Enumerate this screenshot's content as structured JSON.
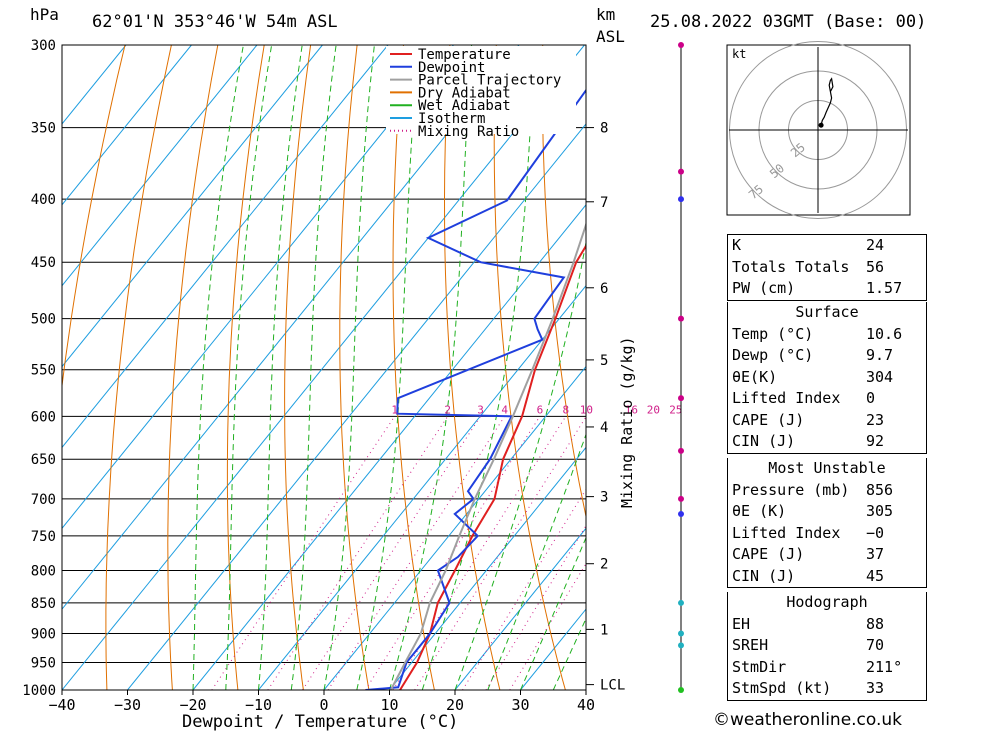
{
  "header": {
    "location": "62°01'N 353°46'W 54m ASL",
    "datetime": "25.08.2022 03GMT (Base: 00)",
    "left_unit": "hPa",
    "right_unit_1": "km",
    "right_unit_2": "ASL"
  },
  "footer": {
    "copyright": "©weatheronline.co.uk"
  },
  "chart_data": [
    {
      "type": "line",
      "title": "",
      "xlabel": "Dewpoint / Temperature (°C)",
      "ylabel": "hPa",
      "secondary_ylabel": "Mixing Ratio (g/kg)",
      "xlim": [
        -40,
        40
      ],
      "ylim": [
        1000,
        300
      ],
      "y_scale": "log",
      "grid": true,
      "legend_position": "top-right",
      "x_ticks": [
        "−40",
        "−30",
        "−20",
        "−10",
        "0",
        "10",
        "20",
        "30",
        "40"
      ],
      "pressure_ticks": [
        300,
        350,
        400,
        450,
        500,
        550,
        600,
        650,
        700,
        750,
        800,
        850,
        900,
        950,
        1000
      ],
      "height_km_ticks": [
        {
          "label": "8",
          "p": 350
        },
        {
          "label": "7",
          "p": 402
        },
        {
          "label": "6",
          "p": 472
        },
        {
          "label": "5",
          "p": 540
        },
        {
          "label": "4",
          "p": 612
        },
        {
          "label": "3",
          "p": 697
        },
        {
          "label": "2",
          "p": 790
        },
        {
          "label": "1",
          "p": 893
        },
        {
          "label": "LCL",
          "p": 990
        }
      ],
      "mixing_ratio_labels": [
        "1",
        "2",
        "3",
        "4",
        "6",
        "8",
        "10",
        "16",
        "20",
        "25"
      ],
      "legend": [
        {
          "name": "Temperature",
          "color": "#e02020"
        },
        {
          "name": "Dewpoint",
          "color": "#1f3fdd"
        },
        {
          "name": "Parcel Trajectory",
          "color": "#a0a0a0"
        },
        {
          "name": "Dry Adiabat",
          "color": "#e07000"
        },
        {
          "name": "Wet Adiabat",
          "color": "#20b020"
        },
        {
          "name": "Isotherm",
          "color": "#1e9ee0"
        },
        {
          "name": "Mixing Ratio",
          "color": "#d0208a"
        }
      ],
      "series": [
        {
          "name": "Temperature",
          "points": [
            [
              1000,
              11.6
            ],
            [
              950,
              10.8
            ],
            [
              900,
              9.2
            ],
            [
              850,
              6.6
            ],
            [
              800,
              5.2
            ],
            [
              750,
              3.6
            ],
            [
              700,
              2.4
            ],
            [
              650,
              -1.2
            ],
            [
              600,
              -3.6
            ],
            [
              550,
              -7.4
            ],
            [
              500,
              -10.6
            ],
            [
              450,
              -14.4
            ],
            [
              400,
              -16.4
            ],
            [
              350,
              -18.4
            ],
            [
              320,
              -19.2
            ],
            [
              300,
              -21.6
            ]
          ]
        },
        {
          "name": "Dewpoint",
          "points": [
            [
              1000,
              6.4
            ],
            [
              995,
              11.0
            ],
            [
              950,
              9.2
            ],
            [
              900,
              9.2
            ],
            [
              850,
              8.4
            ],
            [
              800,
              2.6
            ],
            [
              780,
              4.0
            ],
            [
              750,
              4.4
            ],
            [
              720,
              -1.8
            ],
            [
              700,
              -0.8
            ],
            [
              690,
              -2.6
            ],
            [
              650,
              -3.2
            ],
            [
              600,
              -5.2
            ],
            [
              597,
              -23.0
            ],
            [
              580,
              -24.8
            ],
            [
              520,
              -10.0
            ],
            [
              510,
              -12.0
            ],
            [
              500,
              -13.8
            ],
            [
              463,
              -14.4
            ],
            [
              450,
              -29.0
            ],
            [
              430,
              -40.0
            ],
            [
              401,
              -32.6
            ],
            [
              300,
              -34.8
            ]
          ]
        },
        {
          "name": "Parcel Trajectory",
          "points": [
            [
              1000,
              10.2
            ],
            [
              950,
              9.0
            ],
            [
              900,
              7.8
            ],
            [
              850,
              5.4
            ],
            [
              800,
              3.8
            ],
            [
              750,
              1.6
            ],
            [
              700,
              -0.6
            ],
            [
              650,
              -2.6
            ],
            [
              600,
              -5.0
            ],
            [
              550,
              -7.8
            ],
            [
              500,
              -11.0
            ],
            [
              450,
              -14.8
            ],
            [
              400,
              -19.4
            ],
            [
              350,
              -24.6
            ],
            [
              300,
              -30.6
            ]
          ]
        }
      ]
    },
    {
      "type": "scatter",
      "title": "kt",
      "rings": [
        "25",
        "50",
        "75"
      ],
      "hodograph_points": [
        [
          5,
          3
        ],
        [
          7,
          6
        ],
        [
          10,
          8
        ],
        [
          13,
          11
        ],
        [
          20,
          17
        ],
        [
          22,
          20
        ],
        [
          18,
          28
        ],
        [
          20,
          31
        ],
        [
          22,
          32
        ],
        [
          24,
          27
        ],
        [
          20,
          24
        ]
      ]
    }
  ],
  "indices": {
    "K": "24",
    "Totals Totals": "56",
    "PW (cm)": "1.57"
  },
  "table1": [
    {
      "label": "K",
      "value": "24"
    },
    {
      "label": "Totals Totals",
      "value": "56"
    },
    {
      "label": "PW (cm)",
      "value": "1.57"
    }
  ],
  "table2": {
    "title": "Surface",
    "rows": [
      {
        "label": "Temp (°C)",
        "value": "10.6"
      },
      {
        "label": "Dewp (°C)",
        "value": "9.7"
      },
      {
        "label": "θE(K)",
        "value": "304"
      },
      {
        "label": "Lifted Index",
        "value": "0"
      },
      {
        "label": "CAPE (J)",
        "value": "23"
      },
      {
        "label": "CIN (J)",
        "value": "92"
      }
    ]
  },
  "table3": {
    "title": "Most Unstable",
    "rows": [
      {
        "label": "Pressure (mb)",
        "value": "856"
      },
      {
        "label": "θE (K)",
        "value": "305"
      },
      {
        "label": "Lifted Index",
        "value": "−0"
      },
      {
        "label": "CAPE (J)",
        "value": "37"
      },
      {
        "label": "CIN (J)",
        "value": "45"
      }
    ]
  },
  "table4": {
    "title": "Hodograph",
    "rows": [
      {
        "label": "EH",
        "value": "88"
      },
      {
        "label": "SREH",
        "value": "70"
      },
      {
        "label": "StmDir",
        "value": "211°"
      },
      {
        "label": "StmSpd (kt)",
        "value": "33"
      }
    ]
  },
  "colors": {
    "temperature": "#e02020",
    "dewpoint": "#1f3fdd",
    "parcel": "#a0a0a0",
    "dry": "#e07000",
    "wet": "#20b020",
    "isotherm": "#1e9ee0",
    "mixing": "#d0208a"
  }
}
